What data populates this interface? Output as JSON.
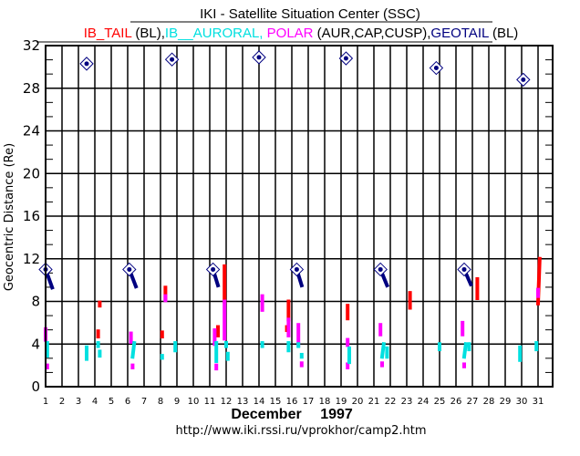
{
  "chart_data": {
    "type": "scatter",
    "title": "IKI - Satellite Situation Center (SSC)",
    "subtitle_parts": [
      {
        "text": "IB_TAIL",
        "color": "#ff0000"
      },
      {
        "text": " (BL),",
        "color": "#000000"
      },
      {
        "text": "IB__AURORAL, ",
        "color": "#00e0e0"
      },
      {
        "text": "POLAR",
        "color": "#ff00ff"
      },
      {
        "text": " (AUR,CAP,CUSP),",
        "color": "#000000"
      },
      {
        "text": "GEOTAIL",
        "color": "#000080"
      },
      {
        "text": " (BL)",
        "color": "#000000"
      }
    ],
    "xlabel_month": "December",
    "xlabel_year": "1997",
    "ylabel": "Geocentric  Distance  (Re)",
    "footer_url": "http://www.iki.rssi.ru/vprokhor/camp2.htm",
    "xlim": [
      1,
      31.9
    ],
    "ylim": [
      0,
      32
    ],
    "x_ticks": [
      "1",
      "2",
      "3",
      "4",
      "5",
      "6",
      "7",
      "8",
      "9",
      "10",
      "11",
      "12",
      "13",
      "14",
      "15",
      "16",
      "17",
      "18",
      "19",
      "20",
      "21",
      "22",
      "23",
      "24",
      "25",
      "26",
      "27",
      "28",
      "29",
      "30",
      "31"
    ],
    "y_ticks": [
      0,
      4,
      8,
      12,
      16,
      20,
      24,
      28,
      32
    ],
    "grid": true,
    "colors": {
      "IB_TAIL": "#ff0000",
      "IB_AURORAL": "#00e0e0",
      "POLAR": "#ff00ff",
      "GEOTAIL": "#000080"
    },
    "series": [
      {
        "name": "GEOTAIL",
        "segments": [
          {
            "x0": 1.0,
            "y0": 11.0,
            "x1": 1.4,
            "y1": 9.3
          },
          {
            "x0": 6.1,
            "y0": 11.0,
            "x1": 6.5,
            "y1": 9.4
          },
          {
            "x0": 11.2,
            "y0": 11.0,
            "x1": 11.5,
            "y1": 9.5
          },
          {
            "x0": 16.3,
            "y0": 11.0,
            "x1": 16.6,
            "y1": 9.5
          },
          {
            "x0": 21.4,
            "y0": 11.0,
            "x1": 21.8,
            "y1": 9.5
          },
          {
            "x0": 26.5,
            "y0": 11.0,
            "x1": 26.9,
            "y1": 9.6
          }
        ],
        "apogee_markers": [
          {
            "x": 1.0,
            "y": 11.0
          },
          {
            "x": 6.1,
            "y": 11.0
          },
          {
            "x": 11.2,
            "y": 11.0
          },
          {
            "x": 16.3,
            "y": 11.0
          },
          {
            "x": 21.4,
            "y": 11.0
          },
          {
            "x": 26.5,
            "y": 11.0
          },
          {
            "x": 3.5,
            "y": 30.3
          },
          {
            "x": 8.7,
            "y": 30.7
          },
          {
            "x": 14.0,
            "y": 30.9
          },
          {
            "x": 19.3,
            "y": 30.8
          },
          {
            "x": 24.8,
            "y": 29.9
          },
          {
            "x": 30.1,
            "y": 28.8
          }
        ]
      },
      {
        "name": "IB_TAIL",
        "segments": [
          {
            "x0": 4.3,
            "y0": 7.6,
            "x1": 4.3,
            "y1": 7.9
          },
          {
            "x0": 4.2,
            "y0": 4.7,
            "x1": 4.2,
            "y1": 5.2
          },
          {
            "x0": 8.3,
            "y0": 8.3,
            "x1": 8.3,
            "y1": 9.3
          },
          {
            "x0": 8.1,
            "y0": 4.7,
            "x1": 8.1,
            "y1": 5.1
          },
          {
            "x0": 11.9,
            "y0": 8.0,
            "x1": 11.9,
            "y1": 11.3
          },
          {
            "x0": 11.5,
            "y0": 4.8,
            "x1": 11.5,
            "y1": 5.6
          },
          {
            "x0": 15.8,
            "y0": 6.3,
            "x1": 15.8,
            "y1": 8.0
          },
          {
            "x0": 15.7,
            "y0": 5.3,
            "x1": 15.7,
            "y1": 5.6
          },
          {
            "x0": 19.4,
            "y0": 6.4,
            "x1": 19.4,
            "y1": 7.6
          },
          {
            "x0": 23.2,
            "y0": 7.4,
            "x1": 23.2,
            "y1": 8.8
          },
          {
            "x0": 27.3,
            "y0": 8.3,
            "x1": 27.3,
            "y1": 10.1
          },
          {
            "x0": 31.0,
            "y0": 7.8,
            "x1": 31.1,
            "y1": 12.0
          }
        ]
      },
      {
        "name": "POLAR",
        "segments": [
          {
            "x0": 1.0,
            "y0": 4.4,
            "x1": 1.0,
            "y1": 5.4
          },
          {
            "x0": 1.1,
            "y0": 1.8,
            "x1": 1.1,
            "y1": 2.0
          },
          {
            "x0": 6.2,
            "y0": 4.2,
            "x1": 6.2,
            "y1": 5.0
          },
          {
            "x0": 6.3,
            "y0": 1.8,
            "x1": 6.3,
            "y1": 2.0
          },
          {
            "x0": 8.3,
            "y0": 8.1,
            "x1": 8.3,
            "y1": 8.5
          },
          {
            "x0": 11.3,
            "y0": 4.0,
            "x1": 11.3,
            "y1": 5.3
          },
          {
            "x0": 11.4,
            "y0": 1.7,
            "x1": 11.4,
            "y1": 2.0
          },
          {
            "x0": 11.9,
            "y0": 4.5,
            "x1": 11.9,
            "y1": 8.0
          },
          {
            "x0": 14.2,
            "y0": 7.2,
            "x1": 14.2,
            "y1": 8.5
          },
          {
            "x0": 15.8,
            "y0": 4.8,
            "x1": 15.8,
            "y1": 6.3
          },
          {
            "x0": 16.4,
            "y0": 3.9,
            "x1": 16.4,
            "y1": 5.8
          },
          {
            "x0": 16.6,
            "y0": 2.0,
            "x1": 16.6,
            "y1": 2.2
          },
          {
            "x0": 19.4,
            "y0": 3.9,
            "x1": 19.4,
            "y1": 4.4
          },
          {
            "x0": 19.4,
            "y0": 1.8,
            "x1": 19.4,
            "y1": 2.1
          },
          {
            "x0": 21.4,
            "y0": 4.9,
            "x1": 21.4,
            "y1": 5.8
          },
          {
            "x0": 21.5,
            "y0": 2.0,
            "x1": 21.5,
            "y1": 2.2
          },
          {
            "x0": 26.4,
            "y0": 4.9,
            "x1": 26.4,
            "y1": 6.0
          },
          {
            "x0": 26.5,
            "y0": 1.9,
            "x1": 26.5,
            "y1": 2.1
          },
          {
            "x0": 31.0,
            "y0": 8.5,
            "x1": 31.0,
            "y1": 9.1
          }
        ]
      },
      {
        "name": "IB_AURORAL",
        "segments": [
          {
            "x0": 1.1,
            "y0": 2.9,
            "x1": 1.1,
            "y1": 4.1
          },
          {
            "x0": 3.5,
            "y0": 2.6,
            "x1": 3.5,
            "y1": 3.7
          },
          {
            "x0": 4.2,
            "y0": 3.8,
            "x1": 4.2,
            "y1": 4.1
          },
          {
            "x0": 4.3,
            "y0": 2.9,
            "x1": 4.3,
            "y1": 3.3
          },
          {
            "x0": 6.3,
            "y0": 2.8,
            "x1": 6.4,
            "y1": 4.1
          },
          {
            "x0": 8.1,
            "y0": 2.7,
            "x1": 8.1,
            "y1": 2.9
          },
          {
            "x0": 8.9,
            "y0": 3.4,
            "x1": 8.9,
            "y1": 4.1
          },
          {
            "x0": 11.4,
            "y0": 2.4,
            "x1": 11.4,
            "y1": 4.1
          },
          {
            "x0": 12.0,
            "y0": 3.8,
            "x1": 12.0,
            "y1": 4.1
          },
          {
            "x0": 12.1,
            "y0": 2.6,
            "x1": 12.1,
            "y1": 3.1
          },
          {
            "x0": 14.2,
            "y0": 3.8,
            "x1": 14.2,
            "y1": 4.1
          },
          {
            "x0": 15.8,
            "y0": 3.4,
            "x1": 15.8,
            "y1": 4.1
          },
          {
            "x0": 16.4,
            "y0": 3.8,
            "x1": 16.4,
            "y1": 4.0
          },
          {
            "x0": 16.6,
            "y0": 2.8,
            "x1": 16.6,
            "y1": 3.0
          },
          {
            "x0": 19.5,
            "y0": 2.3,
            "x1": 19.5,
            "y1": 3.6
          },
          {
            "x0": 21.5,
            "y0": 2.8,
            "x1": 21.6,
            "y1": 4.0
          },
          {
            "x0": 21.8,
            "y0": 2.8,
            "x1": 21.8,
            "y1": 3.6
          },
          {
            "x0": 25.0,
            "y0": 3.5,
            "x1": 25.0,
            "y1": 4.0
          },
          {
            "x0": 26.5,
            "y0": 2.8,
            "x1": 26.6,
            "y1": 4.0
          },
          {
            "x0": 26.8,
            "y0": 3.5,
            "x1": 26.8,
            "y1": 4.0
          },
          {
            "x0": 29.9,
            "y0": 2.5,
            "x1": 29.9,
            "y1": 3.7
          },
          {
            "x0": 30.9,
            "y0": 3.5,
            "x1": 30.9,
            "y1": 4.1
          }
        ]
      }
    ]
  }
}
